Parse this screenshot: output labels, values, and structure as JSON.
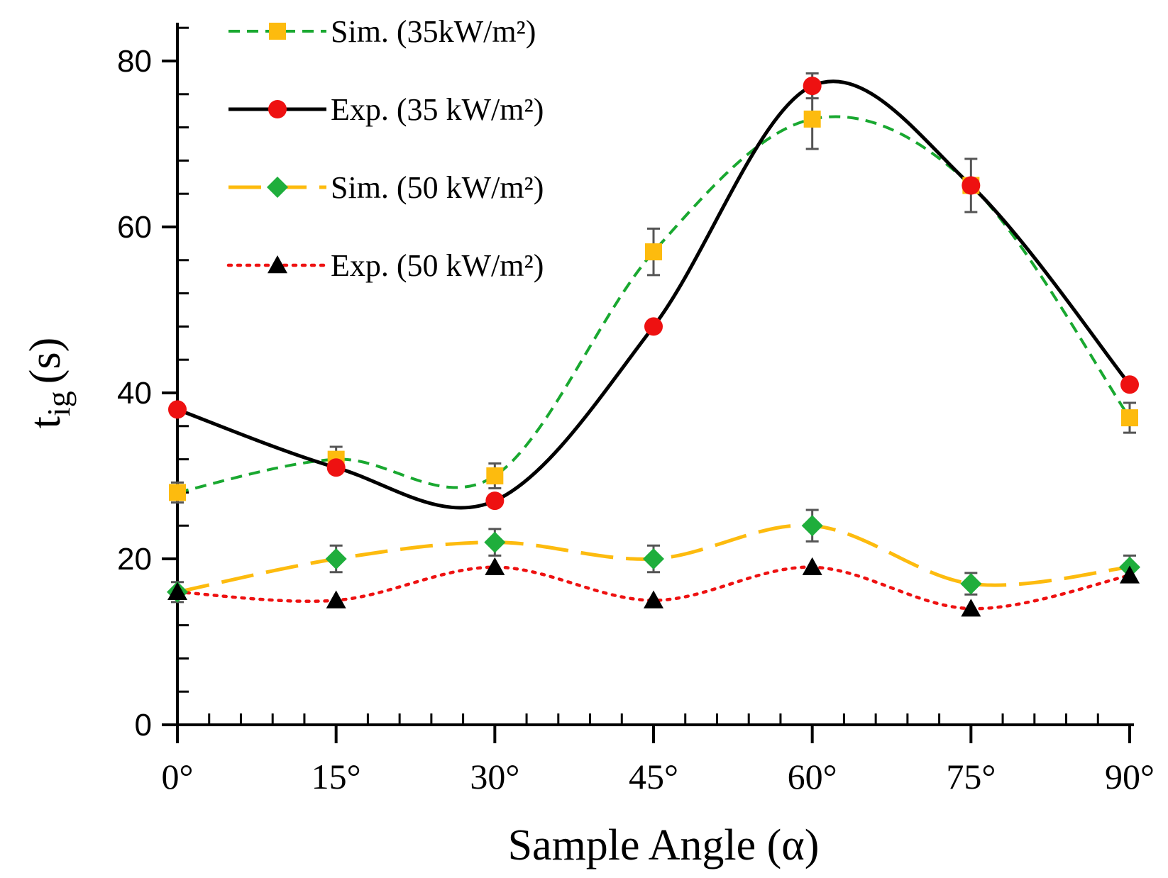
{
  "chart_data": {
    "type": "line",
    "title": "",
    "xlabel": "Sample Angle (α)",
    "ylabel_main": "t",
    "ylabel_sub": "ig",
    "ylabel_unit": "(s)",
    "categories": [
      "0°",
      "15°",
      "30°",
      "45°",
      "60°",
      "75°",
      "90°"
    ],
    "x": [
      0,
      15,
      30,
      45,
      60,
      75,
      90
    ],
    "xlim": [
      0,
      90
    ],
    "ylim": [
      0,
      80
    ],
    "yticks": [
      0,
      20,
      40,
      60,
      80
    ],
    "ytick_labels": [
      "0",
      "20",
      "40",
      "60",
      "80"
    ],
    "grid": false,
    "legend_position": "top-left",
    "series": [
      {
        "name": "Sim. (35kW/m²)",
        "values": [
          28,
          32,
          30,
          57,
          73,
          65,
          37
        ],
        "error": [
          1.2,
          1.5,
          1.5,
          2.8,
          3.6,
          3.2,
          1.8
        ],
        "color": "#19a830",
        "dash": "dashed-short",
        "marker": "square",
        "marker_color": "#fdbb0e"
      },
      {
        "name": "Exp. (35 kW/m²)",
        "values": [
          38,
          31,
          27,
          48,
          77,
          65,
          41
        ],
        "error": [
          0,
          0,
          0,
          0,
          1.5,
          0,
          0
        ],
        "color": "#000000",
        "dash": "solid",
        "marker": "circle",
        "marker_color": "#ee1111"
      },
      {
        "name": "Sim. (50 kW/m²)",
        "values": [
          16,
          20,
          22,
          20,
          24,
          17,
          19
        ],
        "error": [
          1.2,
          1.6,
          1.6,
          1.6,
          1.9,
          1.3,
          1.4
        ],
        "color": "#fdbb0e",
        "dash": "dashed-long",
        "marker": "diamond",
        "marker_color": "#1fae3c"
      },
      {
        "name": "Exp. (50 kW/m²)",
        "values": [
          16,
          15,
          19,
          15,
          19,
          14,
          18
        ],
        "error": [
          0,
          0,
          0,
          0,
          0,
          0,
          0
        ],
        "color": "#ee1111",
        "dash": "dotted",
        "marker": "triangle",
        "marker_color": "#000000"
      }
    ]
  }
}
